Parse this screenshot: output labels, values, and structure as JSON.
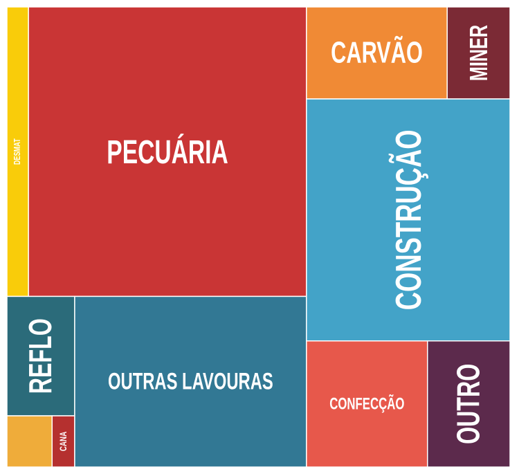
{
  "chart_data": {
    "type": "treemap",
    "categories": [
      "DESMAT",
      "PECUÁRIA",
      "REFLO",
      null,
      "CANA",
      "OUTRAS LAVOURAS",
      "CARVÃO",
      "MINER",
      "CONSTRUÇÃO",
      "CONFECÇÃO",
      "OUTRO"
    ],
    "values": [
      2.7,
      34.8,
      3.5,
      1.0,
      0.5,
      17.1,
      5.6,
      2.5,
      21.3,
      6.6,
      4.5
    ],
    "colors": [
      "#f9cc0a",
      "#c93535",
      "#2b6b7a",
      "#efac3a",
      "#b5302f",
      "#327894",
      "#f08a35",
      "#7b2a35",
      "#43a3c8",
      "#e7584b",
      "#5c2a4c"
    ]
  }
}
